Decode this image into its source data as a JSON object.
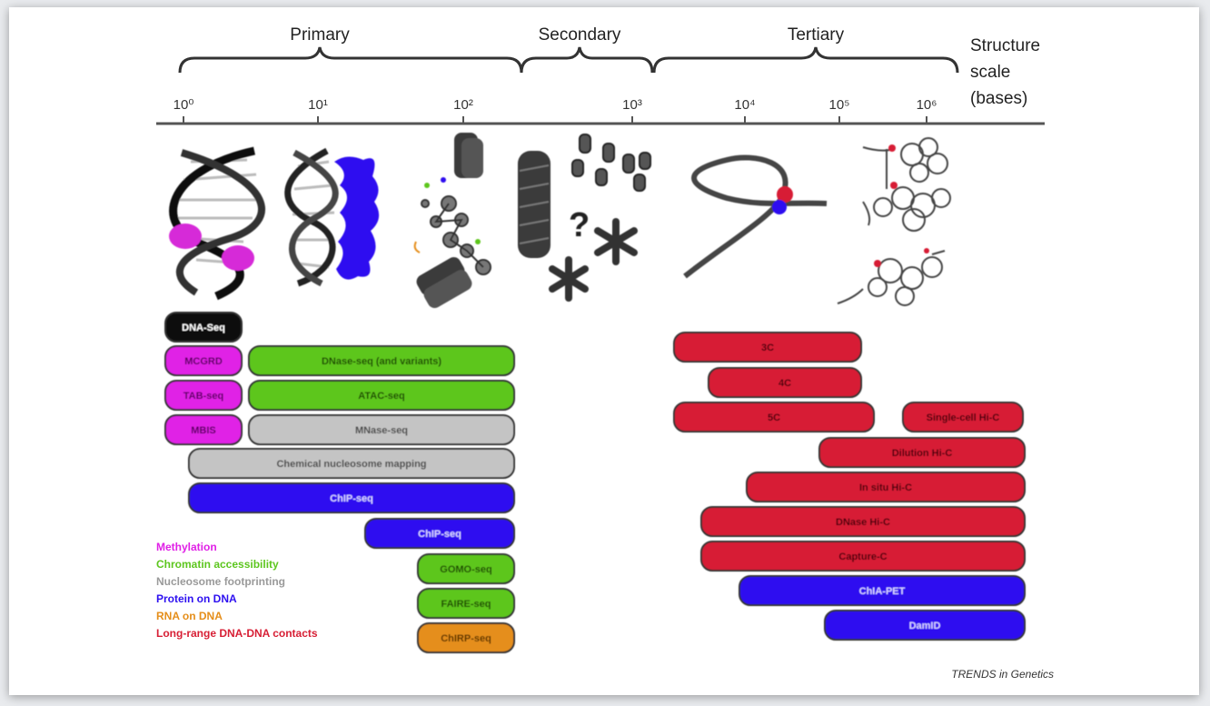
{
  "scale": {
    "primary": "Primary",
    "secondary": "Secondary",
    "tertiary": "Tertiary",
    "axis_title": [
      "Structure",
      "scale",
      "(bases)"
    ]
  },
  "ticks": [
    "10⁰",
    "10¹",
    "10²",
    "10³",
    "10⁴",
    "10⁵",
    "10⁶"
  ],
  "illustrations": {
    "question_mark": "?"
  },
  "assays": [
    {
      "id": "dna-seq",
      "label": "DNA-Seq",
      "category": "sequence",
      "color": "#111111",
      "text_color": "#ffffff"
    },
    {
      "id": "mcgrd",
      "label": "MCGRD",
      "category": "methylation",
      "color": "#e020e6",
      "text_color": "#5a0060"
    },
    {
      "id": "dnase-seq",
      "label": "DNase-seq (and variants)",
      "category": "accessibility",
      "color": "#5dc61f",
      "text_color": "#1f4a06"
    },
    {
      "id": "tab-seq",
      "label": "TAB-seq",
      "category": "methylation",
      "color": "#e020e6",
      "text_color": "#5a0060"
    },
    {
      "id": "atac-seq",
      "label": "ATAC-seq",
      "category": "accessibility",
      "color": "#5dc61f",
      "text_color": "#1f4a06"
    },
    {
      "id": "mbis",
      "label": "MBIS",
      "category": "methylation",
      "color": "#e020e6",
      "text_color": "#5a0060"
    },
    {
      "id": "mnase-seq",
      "label": "MNase-seq",
      "category": "nucleosome",
      "color": "#c4c4c4",
      "text_color": "#444444"
    },
    {
      "id": "chem-nuc",
      "label": "Chemical nucleosome mapping",
      "category": "nucleosome",
      "color": "#c4c4c4",
      "text_color": "#444444"
    },
    {
      "id": "chip-seq-1",
      "label": "ChIP-seq",
      "category": "protein",
      "color": "#2d10f0",
      "text_color": "#d8d0ff"
    },
    {
      "id": "chip-seq-2",
      "label": "ChIP-seq",
      "category": "protein",
      "color": "#2d10f0",
      "text_color": "#d8d0ff"
    },
    {
      "id": "gomo-seq",
      "label": "GOMO-seq",
      "category": "accessibility",
      "color": "#5dc61f",
      "text_color": "#1f4a06"
    },
    {
      "id": "faire-seq",
      "label": "FAIRE-seq",
      "category": "accessibility",
      "color": "#5dc61f",
      "text_color": "#1f4a06"
    },
    {
      "id": "chirp-seq",
      "label": "ChIRP-seq",
      "category": "rna",
      "color": "#e58e1a",
      "text_color": "#5a3000"
    },
    {
      "id": "3c",
      "label": "3C",
      "category": "contacts",
      "color": "#d71f35",
      "text_color": "#4a0008"
    },
    {
      "id": "4c",
      "label": "4C",
      "category": "contacts",
      "color": "#d71f35",
      "text_color": "#4a0008"
    },
    {
      "id": "5c",
      "label": "5C",
      "category": "contacts",
      "color": "#d71f35",
      "text_color": "#4a0008"
    },
    {
      "id": "single-cell-hic",
      "label": "Single-cell Hi-C",
      "category": "contacts",
      "color": "#d71f35",
      "text_color": "#4a0008"
    },
    {
      "id": "dilution-hic",
      "label": "Dilution Hi-C",
      "category": "contacts",
      "color": "#d71f35",
      "text_color": "#4a0008"
    },
    {
      "id": "insitu-hic",
      "label": "In situ Hi-C",
      "category": "contacts",
      "color": "#d71f35",
      "text_color": "#4a0008"
    },
    {
      "id": "dnase-hic",
      "label": "DNase Hi-C",
      "category": "contacts",
      "color": "#d71f35",
      "text_color": "#4a0008"
    },
    {
      "id": "capture-c",
      "label": "Capture-C",
      "category": "contacts",
      "color": "#d71f35",
      "text_color": "#4a0008"
    },
    {
      "id": "chia-pet",
      "label": "ChIA-PET",
      "category": "protein",
      "color": "#2d10f0",
      "text_color": "#d8d0ff"
    },
    {
      "id": "damid",
      "label": "DamID",
      "category": "protein",
      "color": "#2d10f0",
      "text_color": "#d8d0ff"
    }
  ],
  "legend": [
    {
      "label": "Methylation",
      "color": "#e020e6"
    },
    {
      "label": "Chromatin accessibility",
      "color": "#5dc61f"
    },
    {
      "label": "Nucleosome footprinting",
      "color": "#9a9a9a"
    },
    {
      "label": "Protein on DNA",
      "color": "#2d10f0"
    },
    {
      "label": "RNA on DNA",
      "color": "#e58e1a"
    },
    {
      "label": "Long-range DNA-DNA contacts",
      "color": "#d71f35"
    }
  ],
  "credit": "TRENDS in Genetics"
}
